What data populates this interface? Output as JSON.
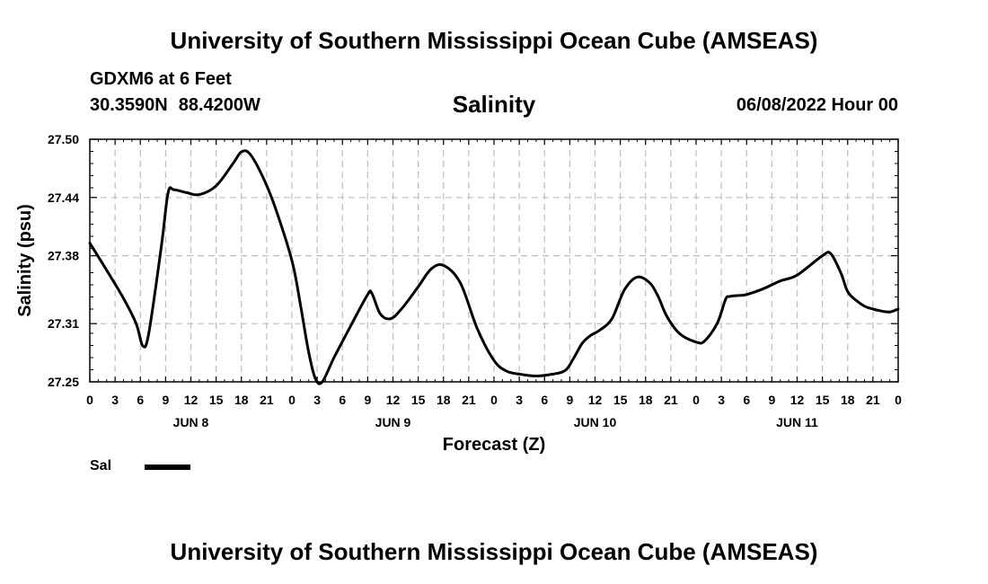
{
  "header": {
    "title_top": "University of Southern Mississippi Ocean Cube (AMSEAS)",
    "station": "GDXM6 at 6 Feet",
    "latitude": "30.3590N",
    "longitude": "88.4200W",
    "datetime": "06/08/2022 Hour 00",
    "title_bottom": "University of Southern Mississippi Ocean Cube (AMSEAS)"
  },
  "chart_data": {
    "type": "line",
    "title": "Salinity",
    "xlabel": "Forecast (Z)",
    "ylabel": "Salinity (psu)",
    "ylim": [
      27.25,
      27.5
    ],
    "xlim_hours": [
      0,
      96
    ],
    "yticks": [
      "27.25",
      "27.31",
      "27.38",
      "27.44",
      "27.50"
    ],
    "ytick_values": [
      27.25,
      27.31,
      27.38,
      27.44,
      27.5
    ],
    "xtick_labels": [
      "0",
      "3",
      "6",
      "9",
      "12",
      "15",
      "18",
      "21",
      "0",
      "3",
      "6",
      "9",
      "12",
      "15",
      "18",
      "21",
      "0",
      "3",
      "6",
      "9",
      "12",
      "15",
      "18",
      "21",
      "0",
      "3",
      "6",
      "9",
      "12",
      "15",
      "18",
      "21",
      "0"
    ],
    "day_labels": [
      {
        "label": "JUN 8",
        "hour": 12
      },
      {
        "label": "JUN 9",
        "hour": 36
      },
      {
        "label": "JUN 10",
        "hour": 60
      },
      {
        "label": "JUN 11",
        "hour": 84
      }
    ],
    "grid": true,
    "legend": "bottom-left",
    "series": [
      {
        "name": "Sal",
        "color": "#000000",
        "x": [
          0,
          2,
          4,
          5.5,
          6.3,
          7,
          8.5,
          9.3,
          10,
          11.5,
          13,
          15,
          17,
          18,
          19,
          20.5,
          22,
          24,
          25,
          26,
          26.8,
          27.6,
          29,
          31,
          33,
          33.5,
          34.5,
          35.7,
          37,
          39,
          40.5,
          42,
          44,
          46,
          48,
          49.5,
          51,
          53,
          55,
          56.5,
          57.5,
          58.5,
          59.5,
          60.5,
          62,
          63.5,
          65,
          66.5,
          67.5,
          68.5,
          70,
          72,
          73,
          74.5,
          75.5,
          76,
          77,
          78,
          80,
          82,
          84,
          87,
          88,
          89.2,
          90,
          91,
          92,
          93,
          94,
          95,
          96
        ],
        "values": [
          27.393,
          27.365,
          27.336,
          27.31,
          27.287,
          27.3,
          27.39,
          27.445,
          27.448,
          27.445,
          27.443,
          27.452,
          27.475,
          27.487,
          27.485,
          27.462,
          27.43,
          27.375,
          27.33,
          27.28,
          27.253,
          27.25,
          27.275,
          27.308,
          27.34,
          27.341,
          27.32,
          27.315,
          27.325,
          27.348,
          27.366,
          27.37,
          27.352,
          27.305,
          27.272,
          27.261,
          27.258,
          27.256,
          27.258,
          27.262,
          27.275,
          27.29,
          27.298,
          27.303,
          27.315,
          27.345,
          27.358,
          27.352,
          27.338,
          27.318,
          27.3,
          27.291,
          27.292,
          27.31,
          27.335,
          27.338,
          27.339,
          27.34,
          27.346,
          27.354,
          27.36,
          27.38,
          27.382,
          27.362,
          27.343,
          27.334,
          27.328,
          27.325,
          27.323,
          27.322,
          27.325
        ]
      }
    ]
  },
  "legend": {
    "label": "Sal",
    "color": "#000000"
  }
}
